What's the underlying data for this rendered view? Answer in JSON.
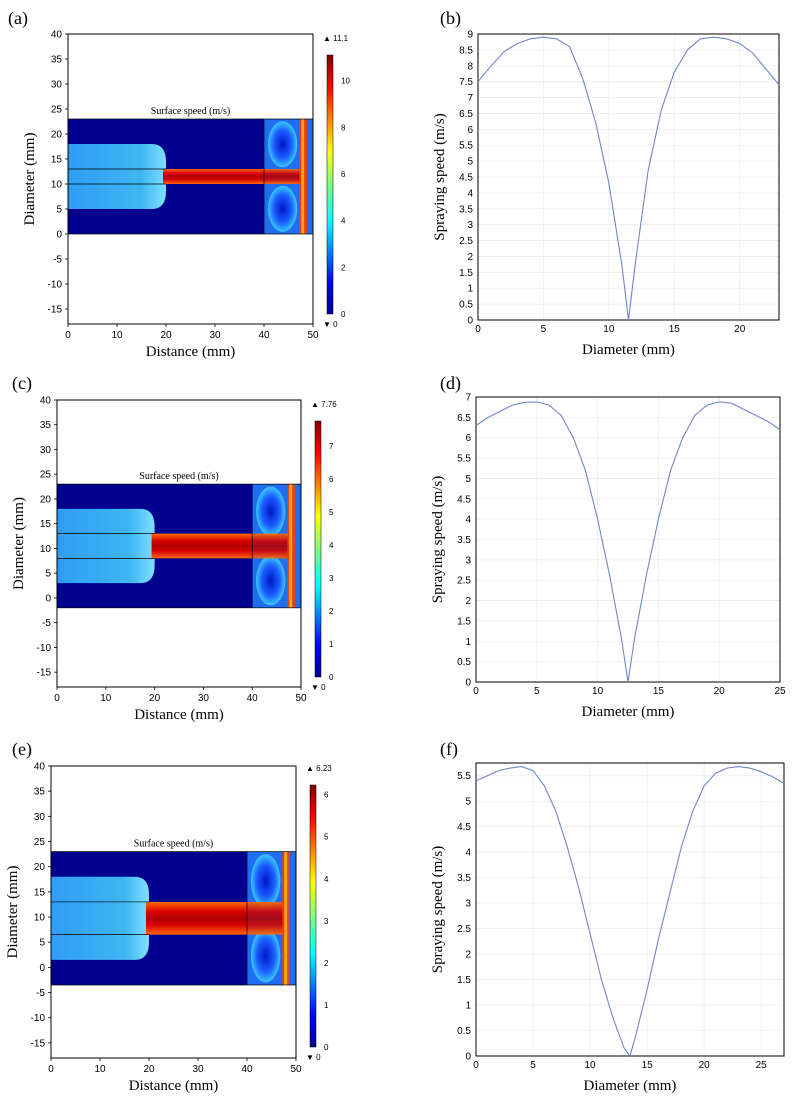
{
  "chart_data": [
    {
      "panel": "(a)",
      "type": "heatmap",
      "title": "Surface speed (m/s)",
      "xlabel": "Distance (mm)",
      "ylabel": "Diameter (mm)",
      "xlim": [
        0,
        50
      ],
      "ylim": [
        -18,
        40
      ],
      "xticks": [
        0,
        10,
        20,
        30,
        40,
        50
      ],
      "yticks": [
        -15,
        -10,
        -5,
        0,
        5,
        10,
        15,
        20,
        25,
        30,
        35,
        40
      ],
      "domain": {
        "x": [
          0,
          50
        ],
        "y": [
          0,
          23
        ],
        "inlet_x": [
          0,
          20
        ],
        "inlet_y": [
          5,
          18
        ],
        "jet_x": [
          20,
          40
        ],
        "jet_y": [
          10,
          13
        ],
        "outlet_x": [
          40,
          50
        ]
      },
      "colorbar": {
        "min": 0,
        "max": 11.1,
        "max_label": "▲ 11.1",
        "min_label": "▼ 0",
        "ticks": [
          0,
          2,
          4,
          6,
          8,
          10
        ]
      }
    },
    {
      "panel": "(b)",
      "type": "line",
      "xlabel": "Diameter (mm)",
      "ylabel": "Spraying speed (m/s)",
      "xlim": [
        0,
        23
      ],
      "ylim": [
        0,
        9
      ],
      "xticks": [
        0,
        5,
        10,
        15,
        20
      ],
      "yticks": [
        0,
        0.5,
        1,
        1.5,
        2,
        2.5,
        3,
        3.5,
        4,
        4.5,
        5,
        5.5,
        6,
        6.5,
        7,
        7.5,
        8,
        8.5,
        9
      ],
      "x": [
        0,
        1,
        2,
        3,
        4,
        5,
        6,
        7,
        8,
        9,
        10,
        11,
        11.5,
        12,
        13,
        14,
        15,
        16,
        17,
        18,
        19,
        20,
        21,
        22,
        23
      ],
      "values": [
        7.5,
        8.0,
        8.45,
        8.7,
        8.85,
        8.9,
        8.85,
        8.6,
        7.6,
        6.2,
        4.3,
        1.7,
        0.0,
        1.7,
        4.7,
        6.6,
        7.8,
        8.5,
        8.85,
        8.9,
        8.85,
        8.7,
        8.4,
        7.9,
        7.4
      ]
    },
    {
      "panel": "(c)",
      "type": "heatmap",
      "title": "Surface speed (m/s)",
      "xlabel": "Distance (mm)",
      "ylabel": "Diameter (mm)",
      "xlim": [
        0,
        50
      ],
      "ylim": [
        -18,
        40
      ],
      "xticks": [
        0,
        10,
        20,
        30,
        40,
        50
      ],
      "yticks": [
        -15,
        -10,
        -5,
        0,
        5,
        10,
        15,
        20,
        25,
        30,
        35,
        40
      ],
      "domain": {
        "x": [
          0,
          50
        ],
        "y": [
          -2,
          23
        ],
        "inlet_x": [
          0,
          20
        ],
        "inlet_y": [
          3,
          18
        ],
        "jet_x": [
          20,
          40
        ],
        "jet_y": [
          8,
          13
        ],
        "outlet_x": [
          40,
          50
        ]
      },
      "colorbar": {
        "min": 0,
        "max": 7.76,
        "max_label": "▲ 7.76",
        "min_label": "▼ 0",
        "ticks": [
          0,
          1,
          2,
          3,
          4,
          5,
          6,
          7
        ]
      }
    },
    {
      "panel": "(d)",
      "type": "line",
      "xlabel": "Diameter (mm)",
      "ylabel": "Spraying speed (m/s)",
      "xlim": [
        0,
        25
      ],
      "ylim": [
        0,
        7
      ],
      "xticks": [
        0,
        5,
        10,
        15,
        20,
        25
      ],
      "yticks": [
        0,
        0.5,
        1,
        1.5,
        2,
        2.5,
        3,
        3.5,
        4,
        4.5,
        5,
        5.5,
        6,
        6.5,
        7
      ],
      "x": [
        0,
        1,
        2,
        3,
        4,
        5,
        6,
        7,
        8,
        9,
        10,
        11,
        12,
        12.5,
        13,
        14,
        15,
        16,
        17,
        18,
        19,
        20,
        21,
        22,
        23,
        24,
        25
      ],
      "values": [
        6.3,
        6.5,
        6.65,
        6.8,
        6.87,
        6.88,
        6.8,
        6.55,
        6.0,
        5.2,
        4.0,
        2.6,
        1.0,
        0.0,
        1.0,
        2.6,
        4.0,
        5.2,
        6.0,
        6.55,
        6.8,
        6.88,
        6.85,
        6.7,
        6.55,
        6.4,
        6.2
      ]
    },
    {
      "panel": "(e)",
      "type": "heatmap",
      "title": "Surface speed (m/s)",
      "xlabel": "Distance (mm)",
      "ylabel": "Diameter (mm)",
      "xlim": [
        0,
        50
      ],
      "ylim": [
        -18,
        40
      ],
      "xticks": [
        0,
        10,
        20,
        30,
        40,
        50
      ],
      "yticks": [
        -15,
        -10,
        -5,
        0,
        5,
        10,
        15,
        20,
        25,
        30,
        35,
        40
      ],
      "domain": {
        "x": [
          0,
          50
        ],
        "y": [
          -3.5,
          23
        ],
        "inlet_x": [
          0,
          20
        ],
        "inlet_y": [
          1.5,
          18
        ],
        "jet_x": [
          20,
          40
        ],
        "jet_y": [
          6.5,
          13
        ],
        "outlet_x": [
          40,
          50
        ]
      },
      "colorbar": {
        "min": 0,
        "max": 6.23,
        "max_label": "▲ 6.23",
        "min_label": "▼ 0",
        "ticks": [
          0,
          1,
          2,
          3,
          4,
          5,
          6
        ]
      }
    },
    {
      "panel": "(f)",
      "type": "line",
      "xlabel": "Diameter (mm)",
      "ylabel": "Spraying speed (m/s)",
      "xlim": [
        0,
        27
      ],
      "ylim": [
        0,
        5.75
      ],
      "xticks": [
        0,
        5,
        10,
        15,
        20,
        25
      ],
      "yticks": [
        0,
        0.5,
        1,
        1.5,
        2,
        2.5,
        3,
        3.5,
        4,
        4.5,
        5,
        5.5
      ],
      "x": [
        0,
        1,
        2,
        3,
        4,
        5,
        6,
        7,
        8,
        9,
        10,
        11,
        12,
        13,
        13.5,
        14,
        15,
        16,
        17,
        18,
        19,
        20,
        21,
        22,
        23,
        24,
        25,
        26,
        27
      ],
      "values": [
        5.4,
        5.5,
        5.6,
        5.65,
        5.68,
        5.6,
        5.3,
        4.8,
        4.1,
        3.3,
        2.4,
        1.5,
        0.75,
        0.15,
        0.0,
        0.4,
        1.3,
        2.3,
        3.2,
        4.1,
        4.8,
        5.3,
        5.55,
        5.65,
        5.68,
        5.65,
        5.58,
        5.48,
        5.35
      ]
    }
  ]
}
